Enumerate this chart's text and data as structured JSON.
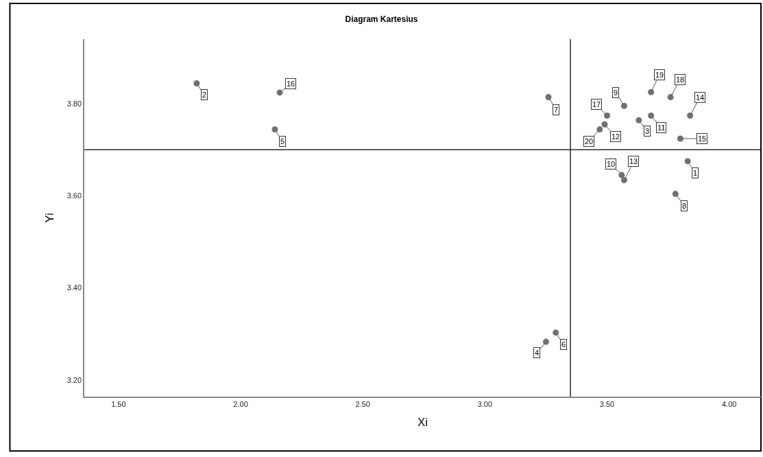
{
  "chart_data": {
    "type": "scatter",
    "title": "Diagram Kartesius",
    "xlabel": "Xi",
    "ylabel": "Yi",
    "x": [
      3.83,
      1.82,
      3.63,
      3.25,
      2.14,
      3.29,
      3.26,
      3.78,
      3.57,
      3.56,
      3.68,
      3.49,
      3.57,
      3.84,
      3.8,
      2.16,
      3.5,
      3.76,
      3.68,
      3.47
    ],
    "series": [
      {
        "color": "#707070",
        "values": [
          3.675,
          3.844,
          3.764,
          3.283,
          3.744,
          3.303,
          3.814,
          3.604,
          3.795,
          3.645,
          3.774,
          3.755,
          3.634,
          3.774,
          3.724,
          3.824,
          3.774,
          3.814,
          3.825,
          3.744
        ]
      }
    ],
    "marker": "circle",
    "xlim": [
      1.36,
      4.13
    ],
    "ylim": [
      3.164,
      3.94
    ],
    "xticks": [
      {
        "value": 1.5,
        "label": "1.50"
      },
      {
        "value": 2.0,
        "label": "2.00"
      },
      {
        "value": 2.5,
        "label": "2.50"
      },
      {
        "value": 3.0,
        "label": "3.00"
      },
      {
        "value": 3.5,
        "label": "3.50"
      },
      {
        "value": 4.0,
        "label": "4.00"
      }
    ],
    "yticks": [
      {
        "value": 3.2,
        "label": "3.20"
      },
      {
        "value": 3.4,
        "label": "3.40"
      },
      {
        "value": 3.6,
        "label": "3.60"
      },
      {
        "value": 3.8,
        "label": "3.80"
      }
    ],
    "ref_lines": [
      {
        "axis": "x",
        "value": 3.35,
        "color": "#000000"
      },
      {
        "axis": "y",
        "value": 3.7,
        "color": "#000000"
      }
    ],
    "grid": false,
    "annotations": [
      {
        "text": "1",
        "x": 3.83,
        "y": 3.675
      },
      {
        "text": "2",
        "x": 1.82,
        "y": 3.844
      },
      {
        "text": "3",
        "x": 3.63,
        "y": 3.764
      },
      {
        "text": "4",
        "x": 3.25,
        "y": 3.283
      },
      {
        "text": "5",
        "x": 2.14,
        "y": 3.744
      },
      {
        "text": "6",
        "x": 3.29,
        "y": 3.303
      },
      {
        "text": "7",
        "x": 3.26,
        "y": 3.814
      },
      {
        "text": "8",
        "x": 3.78,
        "y": 3.604
      },
      {
        "text": "9",
        "x": 3.57,
        "y": 3.795
      },
      {
        "text": "10",
        "x": 3.56,
        "y": 3.645
      },
      {
        "text": "11",
        "x": 3.68,
        "y": 3.774
      },
      {
        "text": "12",
        "x": 3.49,
        "y": 3.755
      },
      {
        "text": "13",
        "x": 3.57,
        "y": 3.634
      },
      {
        "text": "14",
        "x": 3.84,
        "y": 3.774
      },
      {
        "text": "15",
        "x": 3.8,
        "y": 3.724
      },
      {
        "text": "16",
        "x": 2.16,
        "y": 3.824
      },
      {
        "text": "17",
        "x": 3.5,
        "y": 3.774
      },
      {
        "text": "18",
        "x": 3.76,
        "y": 3.814
      },
      {
        "text": "19",
        "x": 3.68,
        "y": 3.825
      },
      {
        "text": "20",
        "x": 3.47,
        "y": 3.744
      }
    ]
  }
}
